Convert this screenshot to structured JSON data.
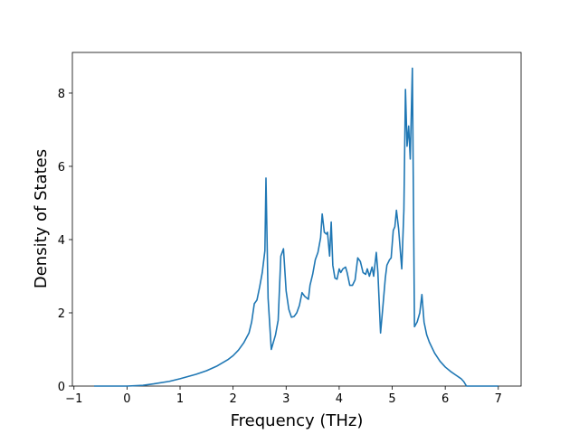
{
  "chart_data": {
    "type": "line",
    "xlabel": "Frequency (THz)",
    "ylabel": "Density of States",
    "color": "#1f77b4",
    "x": [
      -0.62,
      0,
      0.3,
      0.5,
      0.8,
      1.0,
      1.3,
      1.5,
      1.7,
      1.9,
      2.0,
      2.1,
      2.2,
      2.3,
      2.35,
      2.4,
      2.45,
      2.5,
      2.55,
      2.6,
      2.62,
      2.66,
      2.72,
      2.8,
      2.85,
      2.9,
      2.95,
      3.0,
      3.05,
      3.1,
      3.15,
      3.2,
      3.25,
      3.3,
      3.35,
      3.42,
      3.45,
      3.5,
      3.55,
      3.6,
      3.65,
      3.68,
      3.72,
      3.76,
      3.78,
      3.82,
      3.85,
      3.88,
      3.92,
      3.96,
      4.0,
      4.03,
      4.07,
      4.12,
      4.15,
      4.2,
      4.25,
      4.3,
      4.35,
      4.4,
      4.45,
      4.5,
      4.53,
      4.57,
      4.62,
      4.65,
      4.7,
      4.73,
      4.78,
      4.82,
      4.87,
      4.9,
      4.95,
      4.98,
      5.02,
      5.05,
      5.08,
      5.12,
      5.18,
      5.22,
      5.25,
      5.28,
      5.31,
      5.34,
      5.38,
      5.42,
      5.47,
      5.52,
      5.56,
      5.6,
      5.65,
      5.7,
      5.8,
      5.9,
      6.0,
      6.1,
      6.2,
      6.3,
      6.35,
      6.4,
      6.6,
      7.0
    ],
    "values": [
      0,
      0,
      0.02,
      0.06,
      0.13,
      0.2,
      0.32,
      0.42,
      0.55,
      0.72,
      0.83,
      0.98,
      1.18,
      1.45,
      1.75,
      2.25,
      2.35,
      2.7,
      3.1,
      3.7,
      5.68,
      2.4,
      1.0,
      1.4,
      1.8,
      3.55,
      3.75,
      2.6,
      2.1,
      1.88,
      1.9,
      2.0,
      2.2,
      2.55,
      2.45,
      2.37,
      2.75,
      3.05,
      3.45,
      3.65,
      4.05,
      4.7,
      4.2,
      4.15,
      4.2,
      3.55,
      4.48,
      3.3,
      2.95,
      2.92,
      3.2,
      3.1,
      3.2,
      3.25,
      3.1,
      2.75,
      2.75,
      2.9,
      3.5,
      3.4,
      3.1,
      3.05,
      3.2,
      3.0,
      3.25,
      3.0,
      3.65,
      3.1,
      1.45,
      2.1,
      2.95,
      3.3,
      3.45,
      3.5,
      4.25,
      4.35,
      4.8,
      4.3,
      3.2,
      4.8,
      8.1,
      6.55,
      7.1,
      6.2,
      8.68,
      1.62,
      1.75,
      2.0,
      2.5,
      1.75,
      1.4,
      1.2,
      0.9,
      0.68,
      0.52,
      0.4,
      0.3,
      0.2,
      0.12,
      0.0,
      0,
      0
    ],
    "xlim": [
      -1.03,
      7.43
    ],
    "ylim": [
      0,
      9.11
    ],
    "xticks": [
      {
        "value": -1,
        "label": "−1"
      },
      0,
      1,
      2,
      3,
      4,
      5,
      6,
      7
    ],
    "yticks": [
      0,
      2,
      4,
      6,
      8
    ]
  }
}
